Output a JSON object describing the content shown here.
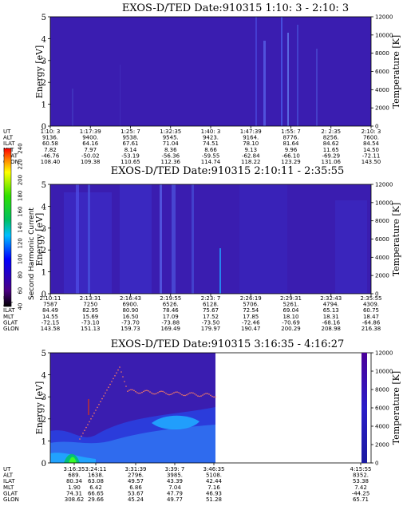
{
  "chart_data": [
    {
      "type": "heatmap",
      "title": "EXOS-D/TED   Date:910315  1:10: 3 - 2:10: 3",
      "ylabel": "Energy [eV]",
      "y2label": "Temperature [K]",
      "ylim": [
        0,
        5
      ],
      "yticks": [
        "0",
        "1",
        "2",
        "3",
        "4",
        "5"
      ],
      "y2lim": [
        0,
        12000
      ],
      "y2ticks": [
        "0",
        "2000",
        "4000",
        "6000",
        "8000",
        "10000",
        "12000"
      ],
      "table_labels": [
        "UT",
        "ALT",
        "ILAT",
        "MLT",
        "GLAT",
        "GLON"
      ],
      "columns": [
        [
          "1:10: 3",
          "9136.",
          "60.58",
          "7.82",
          "-46.76",
          "108.40"
        ],
        [
          "1:17:39",
          "9400.",
          "64.16",
          "7.97",
          "-50.02",
          "109.38"
        ],
        [
          "1:25: 7",
          "9538.",
          "67.61",
          "8.14",
          "-53.19",
          "110.65"
        ],
        [
          "1:32:35",
          "9545.",
          "71.04",
          "8.36",
          "-56.36",
          "112.36"
        ],
        [
          "1:40: 3",
          "9423.",
          "74.51",
          "8.66",
          "-59.55",
          "114.74"
        ],
        [
          "1:47:39",
          "9164.",
          "78.10",
          "9.13",
          "-62.84",
          "118.22"
        ],
        [
          "1:55: 7",
          "8776.",
          "81.64",
          "9.96",
          "-66.10",
          "123.29"
        ],
        [
          "2: 2:35",
          "8256.",
          "84.62",
          "11.65",
          "-69.29",
          "131.06"
        ],
        [
          "2:10: 3",
          "7600.",
          "84.54",
          "14.50",
          "-72.11",
          "143.50"
        ]
      ]
    },
    {
      "type": "heatmap",
      "title": "EXOS-D/TED   Date:910315  2:10:11 - 2:35:55",
      "ylabel": "Energy [eV]",
      "y2label": "Temperature [K]",
      "ylim": [
        0,
        5
      ],
      "yticks": [
        "0",
        "1",
        "2",
        "3",
        "4",
        "5"
      ],
      "y2lim": [
        0,
        12000
      ],
      "y2ticks": [
        "0",
        "2000",
        "4000",
        "6000",
        "8000",
        "10000",
        "12000"
      ],
      "colorbar": {
        "label": "Second Harmonic Current",
        "ticks": [
          "40",
          "60",
          "80",
          "100",
          "120",
          "140",
          "160",
          "180",
          "200",
          "220",
          "240"
        ]
      },
      "table_labels": [
        "UT",
        "ALT",
        "ILAT",
        "MLT",
        "GLAT",
        "GLON"
      ],
      "columns": [
        [
          "2:10:11",
          "7587",
          "84.49",
          "14.55",
          "-72.15",
          "143.58"
        ],
        [
          "2:13:31",
          "7250",
          "82.95",
          "15.69",
          "-73.10",
          "151.13"
        ],
        [
          "2:16:43",
          "6900.",
          "80.90",
          "16.50",
          "-73.70",
          "159.73"
        ],
        [
          "2:19:55",
          "6526.",
          "78.46",
          "17.09",
          "-73.88",
          "169.49"
        ],
        [
          "2:23: 7",
          "6128.",
          "75.67",
          "17.52",
          "-73.50",
          "179.97"
        ],
        [
          "2:26:19",
          "5706.",
          "72.54",
          "17.85",
          "-72.46",
          "190.47"
        ],
        [
          "2:29:31",
          "5261.",
          "69.04",
          "18.10",
          "-70.69",
          "200.29"
        ],
        [
          "2:32:43",
          "4794.",
          "65.13",
          "18.31",
          "-68.16",
          "208.98"
        ],
        [
          "2:35:55",
          "4309.",
          "60.75",
          "18.47",
          "-64.86",
          "216.38"
        ]
      ]
    },
    {
      "type": "heatmap",
      "title": "EXOS-D/TED   Date:910315  3:16:35 - 4:16:27",
      "ylabel": "Energy [eV]",
      "y2label": "Temperature [K]",
      "ylim": [
        0,
        5
      ],
      "yticks": [
        "0",
        "1",
        "2",
        "3",
        "4",
        "5"
      ],
      "y2lim": [
        0,
        12000
      ],
      "y2ticks": [
        "0",
        "2000",
        "4000",
        "6000",
        "8000",
        "10000",
        "12000"
      ],
      "table_labels": [
        "UT",
        "ALT",
        "ILAT",
        "MLT",
        "GLAT",
        "GLON"
      ],
      "columns": [
        [
          "3:16:35",
          "689.",
          "80.34",
          "1.90",
          "74.31",
          "308.62"
        ],
        [
          "3:24:11",
          "1638.",
          "63.08",
          "6.42",
          "66.65",
          "29.66"
        ],
        [
          "3:31:39",
          "2796.",
          "49.57",
          "6.86",
          "53.67",
          "45.24"
        ],
        [
          "3:39: 7",
          "3985.",
          "43.39",
          "7.04",
          "47.79",
          "49.77"
        ],
        [
          "3:46:35",
          "5108.",
          "42.44",
          "7.16",
          "46.93",
          "51.28"
        ]
      ],
      "last_column": [
        "4:15:55",
        "8352.",
        "53.38",
        "7.42",
        "-44.25",
        "65.71"
      ]
    }
  ]
}
